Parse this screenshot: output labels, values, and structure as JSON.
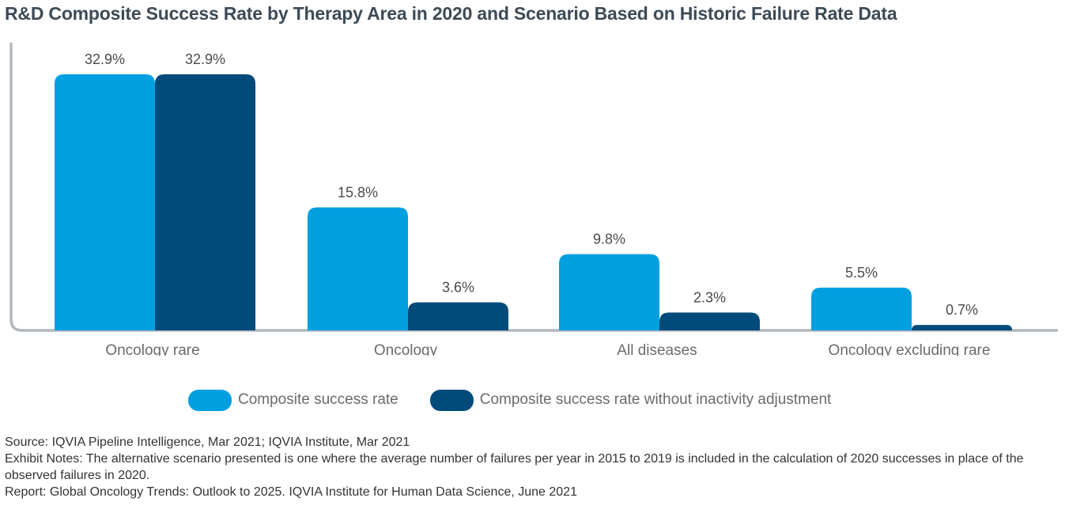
{
  "title": "R&D Composite Success Rate by Therapy Area in 2020 and Scenario Based on Historic Failure Rate Data",
  "colors": {
    "series1": "#009fe0",
    "series2": "#004b7a",
    "axis": "#b3b8bd"
  },
  "chart_data": {
    "type": "bar",
    "categories": [
      "Oncology rare",
      "Oncology",
      "All diseases",
      "Oncology excluding rare"
    ],
    "series": [
      {
        "name": "Composite success rate",
        "values": [
          32.9,
          15.8,
          9.8,
          5.5
        ],
        "labels": [
          "32.9%",
          "15.8%",
          "9.8%",
          "5.5%"
        ]
      },
      {
        "name": "Composite success rate without inactivity adjustment",
        "values": [
          32.9,
          3.6,
          2.3,
          0.7
        ],
        "labels": [
          "32.9%",
          "3.6%",
          "2.3%",
          "0.7%"
        ]
      }
    ],
    "ylim": [
      0,
      33
    ],
    "grid": false,
    "legend_position": "bottom"
  },
  "footer": {
    "source": "Source: IQVIA Pipeline Intelligence, Mar 2021; IQVIA Institute, Mar 2021",
    "notes": "Exhibit Notes: The alternative scenario presented is one where the average number of failures per year in 2015 to 2019 is included in the calculation of 2020 successes in place of the observed failures in 2020.",
    "report": "Report: Global Oncology Trends: Outlook to 2025. IQVIA Institute for Human Data Science, June 2021"
  }
}
